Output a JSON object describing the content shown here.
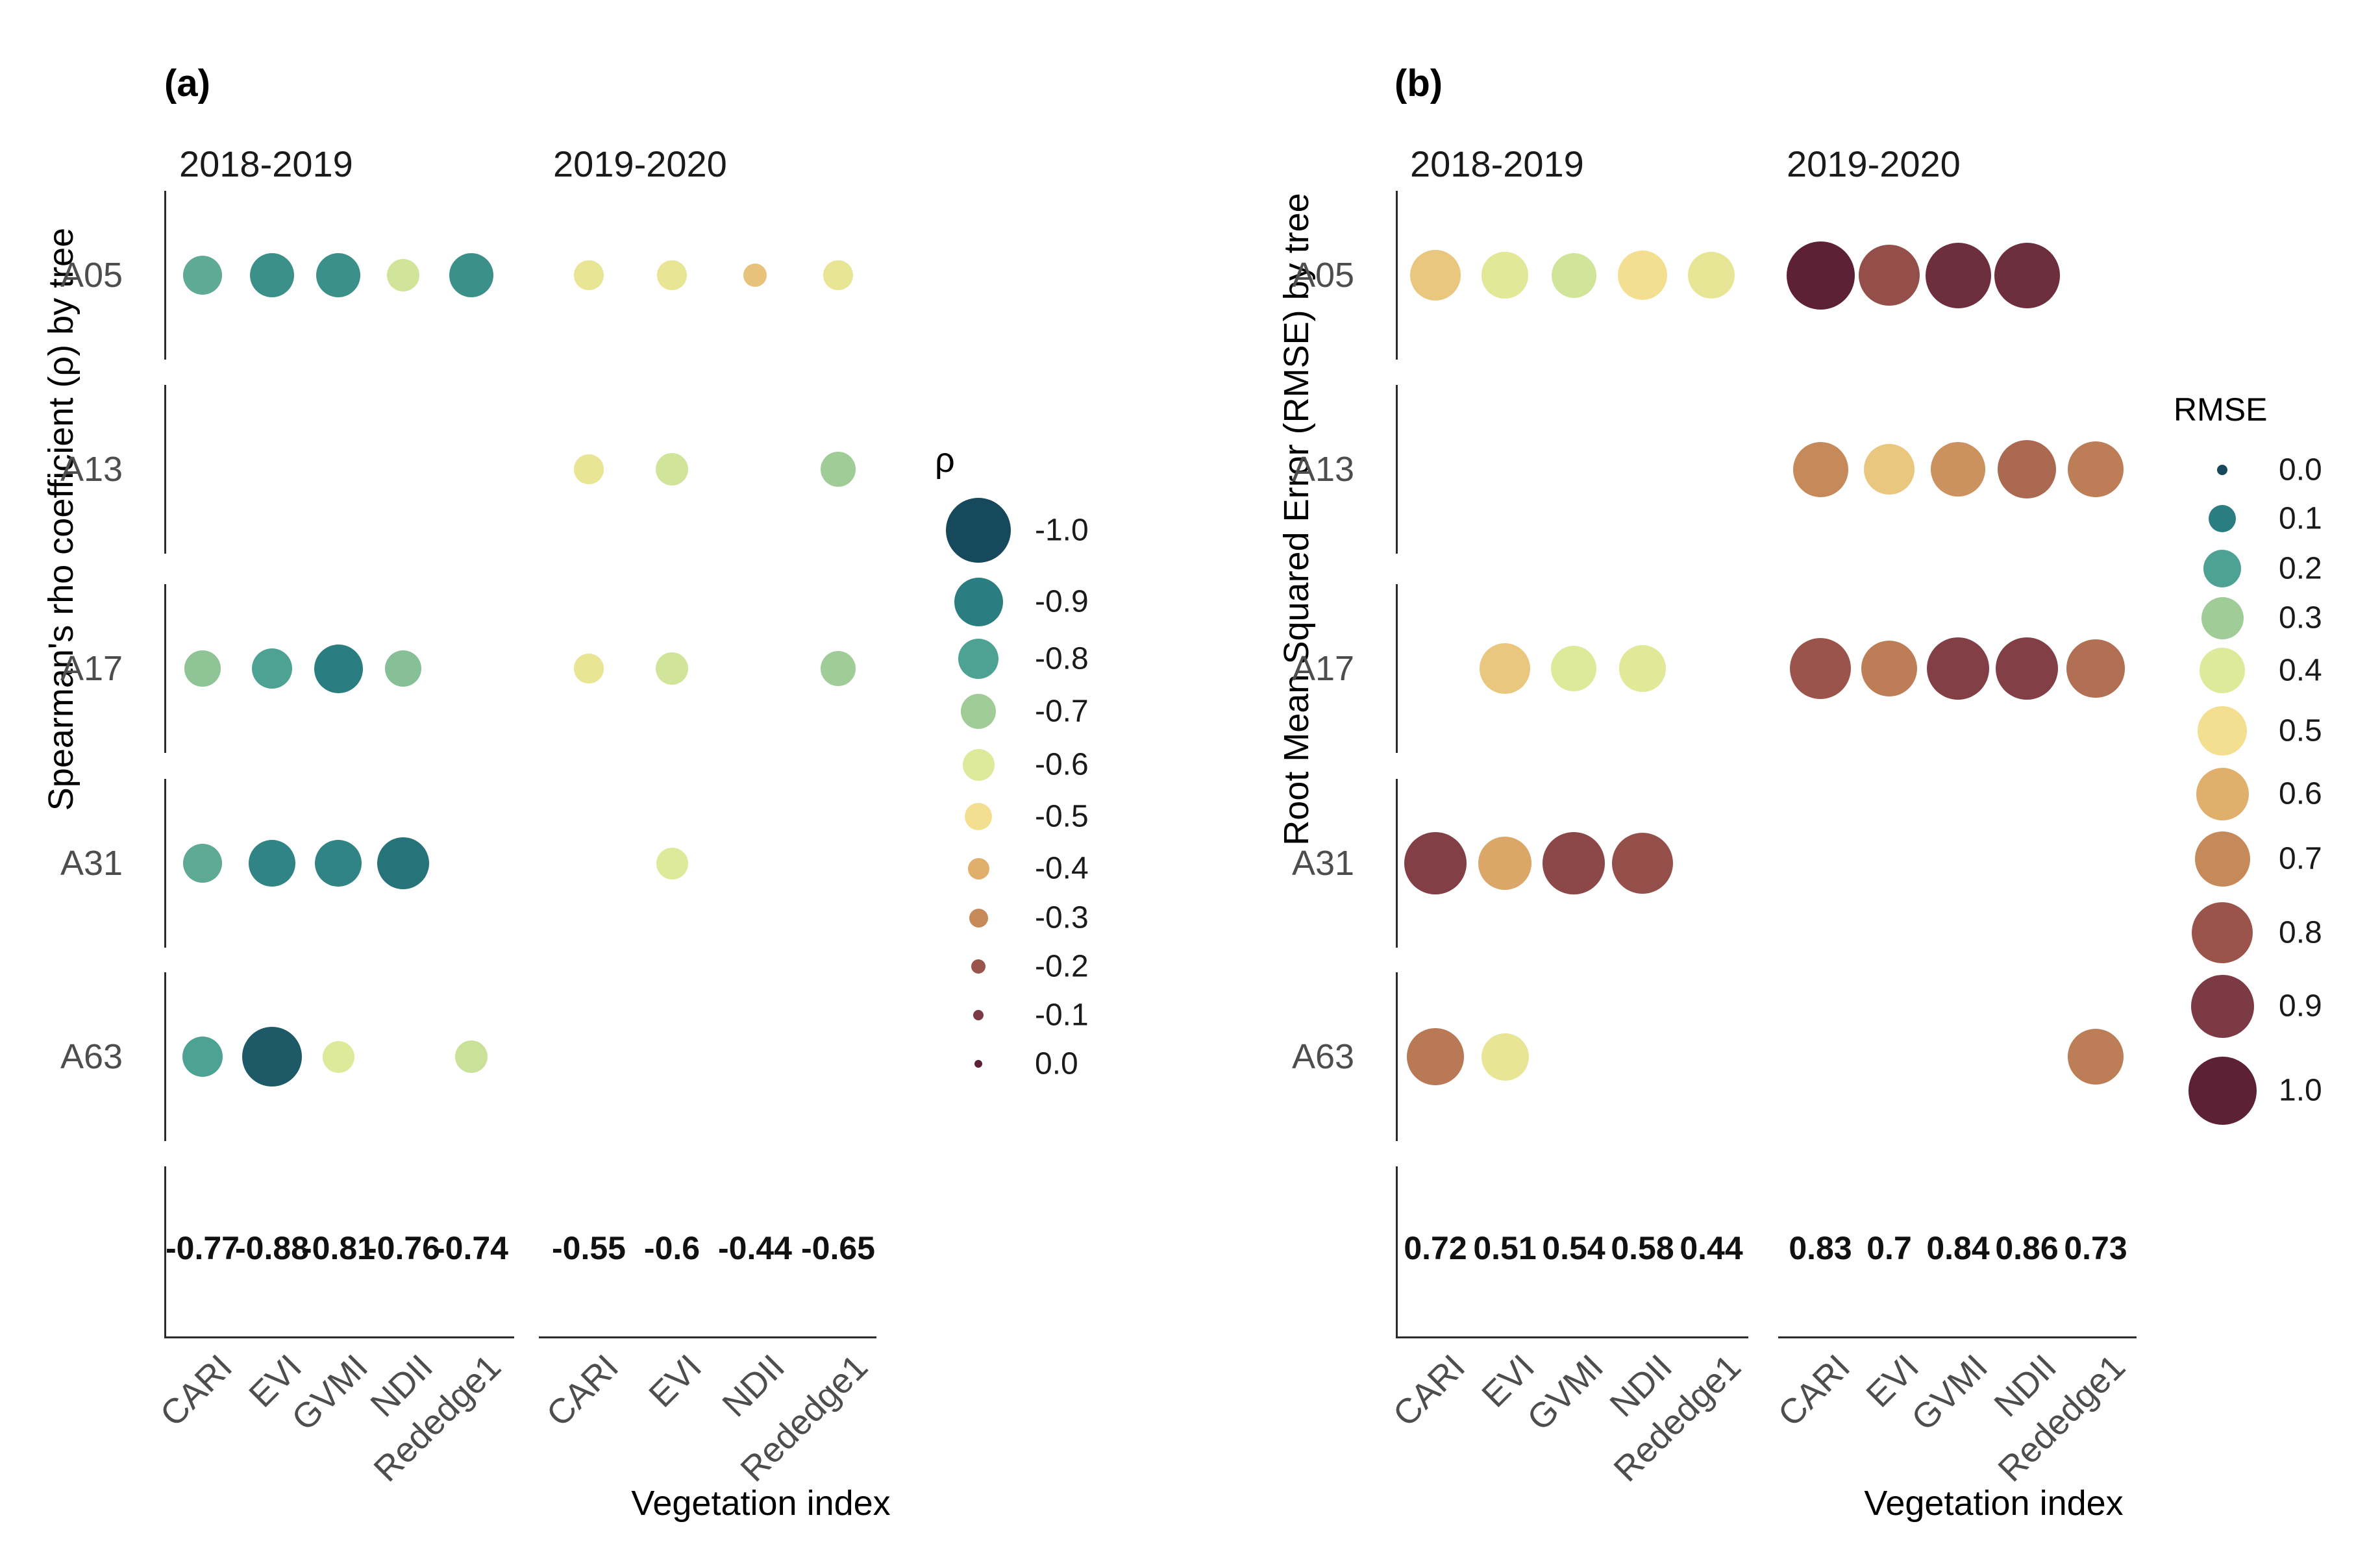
{
  "page": {
    "background": "#ffffff"
  },
  "palette_stops": [
    "#17495c",
    "#2a7d81",
    "#4ea293",
    "#a0cc98",
    "#dcea9a",
    "#f4df90",
    "#e0af6c",
    "#c6895a",
    "#9b544b",
    "#7c3a44",
    "#5d2136"
  ],
  "chart_data": [
    {
      "type": "scatter",
      "subtype": "bubble-matrix",
      "tag": "(a)",
      "ylabel": "Spearman's rho coefficient (ρ) by tree",
      "xlabel": "Vegetation index",
      "rows": [
        "A05",
        "A13",
        "A17",
        "A31",
        "A63"
      ],
      "legend": {
        "title": "ρ",
        "labels": [
          "-1.0",
          "-0.9",
          "-0.8",
          "-0.7",
          "-0.6",
          "-0.5",
          "-0.4",
          "-0.3",
          "-0.2",
          "-0.1",
          "0.0"
        ],
        "values": [
          -1.0,
          -0.9,
          -0.8,
          -0.7,
          -0.6,
          -0.5,
          -0.4,
          -0.3,
          -0.2,
          -0.1,
          0.0
        ],
        "position": "right"
      },
      "facets": [
        {
          "label": "2018-2019",
          "categories": [
            "CARI",
            "EVI",
            "GVMI",
            "NDII",
            "Rededge1"
          ],
          "means": [
            "-0.77",
            "-0.88",
            "-0.81",
            "-0.76",
            "-0.74"
          ],
          "points": [
            {
              "tree": "A05",
              "vi": "CARI",
              "value": -0.78
            },
            {
              "tree": "A05",
              "vi": "EVI",
              "value": -0.85
            },
            {
              "tree": "A05",
              "vi": "GVMI",
              "value": -0.85
            },
            {
              "tree": "A05",
              "vi": "NDII",
              "value": -0.62
            },
            {
              "tree": "A05",
              "vi": "Rededge1",
              "value": -0.85
            },
            {
              "tree": "A17",
              "vi": "CARI",
              "value": -0.72
            },
            {
              "tree": "A17",
              "vi": "EVI",
              "value": -0.8
            },
            {
              "tree": "A17",
              "vi": "GVMI",
              "value": -0.9
            },
            {
              "tree": "A17",
              "vi": "NDII",
              "value": -0.73
            },
            {
              "tree": "A31",
              "vi": "CARI",
              "value": -0.78
            },
            {
              "tree": "A31",
              "vi": "EVI",
              "value": -0.88
            },
            {
              "tree": "A31",
              "vi": "GVMI",
              "value": -0.88
            },
            {
              "tree": "A31",
              "vi": "NDII",
              "value": -0.92
            },
            {
              "tree": "A63",
              "vi": "CARI",
              "value": -0.8
            },
            {
              "tree": "A63",
              "vi": "EVI",
              "value": -0.97
            },
            {
              "tree": "A63",
              "vi": "GVMI",
              "value": -0.6
            },
            {
              "tree": "A63",
              "vi": "Rededge1",
              "value": -0.63
            }
          ]
        },
        {
          "label": "2019-2020",
          "categories": [
            "CARI",
            "EVI",
            "NDII",
            "Rededge1"
          ],
          "means": [
            "-0.55",
            "-0.6",
            "-0.44",
            "-0.65"
          ],
          "points": [
            {
              "tree": "A05",
              "vi": "CARI",
              "value": -0.55
            },
            {
              "tree": "A05",
              "vi": "EVI",
              "value": -0.55
            },
            {
              "tree": "A05",
              "vi": "NDII",
              "value": -0.44
            },
            {
              "tree": "A05",
              "vi": "Rededge1",
              "value": -0.55
            },
            {
              "tree": "A13",
              "vi": "CARI",
              "value": -0.55
            },
            {
              "tree": "A13",
              "vi": "EVI",
              "value": -0.62
            },
            {
              "tree": "A13",
              "vi": "Rededge1",
              "value": -0.7
            },
            {
              "tree": "A17",
              "vi": "CARI",
              "value": -0.55
            },
            {
              "tree": "A17",
              "vi": "EVI",
              "value": -0.62
            },
            {
              "tree": "A17",
              "vi": "Rededge1",
              "value": -0.7
            },
            {
              "tree": "A31",
              "vi": "EVI",
              "value": -0.6
            }
          ]
        }
      ]
    },
    {
      "type": "scatter",
      "subtype": "bubble-matrix",
      "tag": "(b)",
      "ylabel": "Root Mean Squared Error (RMSE) by tree",
      "xlabel": "Vegetation index",
      "rows": [
        "A05",
        "A13",
        "A17",
        "A31",
        "A63"
      ],
      "legend": {
        "title": "RMSE",
        "labels": [
          "0.0",
          "0.1",
          "0.2",
          "0.3",
          "0.4",
          "0.5",
          "0.6",
          "0.7",
          "0.8",
          "0.9",
          "1.0"
        ],
        "values": [
          0.0,
          0.1,
          0.2,
          0.3,
          0.4,
          0.5,
          0.6,
          0.7,
          0.8,
          0.9,
          1.0
        ],
        "position": "right"
      },
      "facets": [
        {
          "label": "2018-2019",
          "categories": [
            "CARI",
            "EVI",
            "GVMI",
            "NDII",
            "Rededge1"
          ],
          "means": [
            "0.72",
            "0.51",
            "0.54",
            "0.58",
            "0.44"
          ],
          "points": [
            {
              "tree": "A05",
              "vi": "CARI",
              "value": 0.55
            },
            {
              "tree": "A05",
              "vi": "EVI",
              "value": 0.42
            },
            {
              "tree": "A05",
              "vi": "GVMI",
              "value": 0.38
            },
            {
              "tree": "A05",
              "vi": "NDII",
              "value": 0.5
            },
            {
              "tree": "A05",
              "vi": "Rededge1",
              "value": 0.44
            },
            {
              "tree": "A17",
              "vi": "EVI",
              "value": 0.55
            },
            {
              "tree": "A17",
              "vi": "GVMI",
              "value": 0.4
            },
            {
              "tree": "A17",
              "vi": "NDII",
              "value": 0.42
            },
            {
              "tree": "A31",
              "vi": "CARI",
              "value": 0.88
            },
            {
              "tree": "A31",
              "vi": "EVI",
              "value": 0.62
            },
            {
              "tree": "A31",
              "vi": "GVMI",
              "value": 0.85
            },
            {
              "tree": "A31",
              "vi": "NDII",
              "value": 0.82
            },
            {
              "tree": "A63",
              "vi": "CARI",
              "value": 0.73
            },
            {
              "tree": "A63",
              "vi": "EVI",
              "value": 0.45
            }
          ]
        },
        {
          "label": "2019-2020",
          "categories": [
            "CARI",
            "EVI",
            "GVMI",
            "NDII",
            "Rededge1"
          ],
          "means": [
            "0.83",
            "0.7",
            "0.84",
            "0.86",
            "0.73"
          ],
          "points": [
            {
              "tree": "A05",
              "vi": "CARI",
              "value": 1.0
            },
            {
              "tree": "A05",
              "vi": "EVI",
              "value": 0.82
            },
            {
              "tree": "A05",
              "vi": "GVMI",
              "value": 0.95
            },
            {
              "tree": "A05",
              "vi": "NDII",
              "value": 0.95
            },
            {
              "tree": "A13",
              "vi": "CARI",
              "value": 0.7
            },
            {
              "tree": "A13",
              "vi": "EVI",
              "value": 0.55
            },
            {
              "tree": "A13",
              "vi": "GVMI",
              "value": 0.68
            },
            {
              "tree": "A13",
              "vi": "NDII",
              "value": 0.76
            },
            {
              "tree": "A13",
              "vi": "Rededge1",
              "value": 0.72
            },
            {
              "tree": "A17",
              "vi": "CARI",
              "value": 0.8
            },
            {
              "tree": "A17",
              "vi": "EVI",
              "value": 0.72
            },
            {
              "tree": "A17",
              "vi": "GVMI",
              "value": 0.88
            },
            {
              "tree": "A17",
              "vi": "NDII",
              "value": 0.88
            },
            {
              "tree": "A17",
              "vi": "Rededge1",
              "value": 0.75
            },
            {
              "tree": "A63",
              "vi": "Rededge1",
              "value": 0.72
            }
          ]
        }
      ]
    }
  ]
}
